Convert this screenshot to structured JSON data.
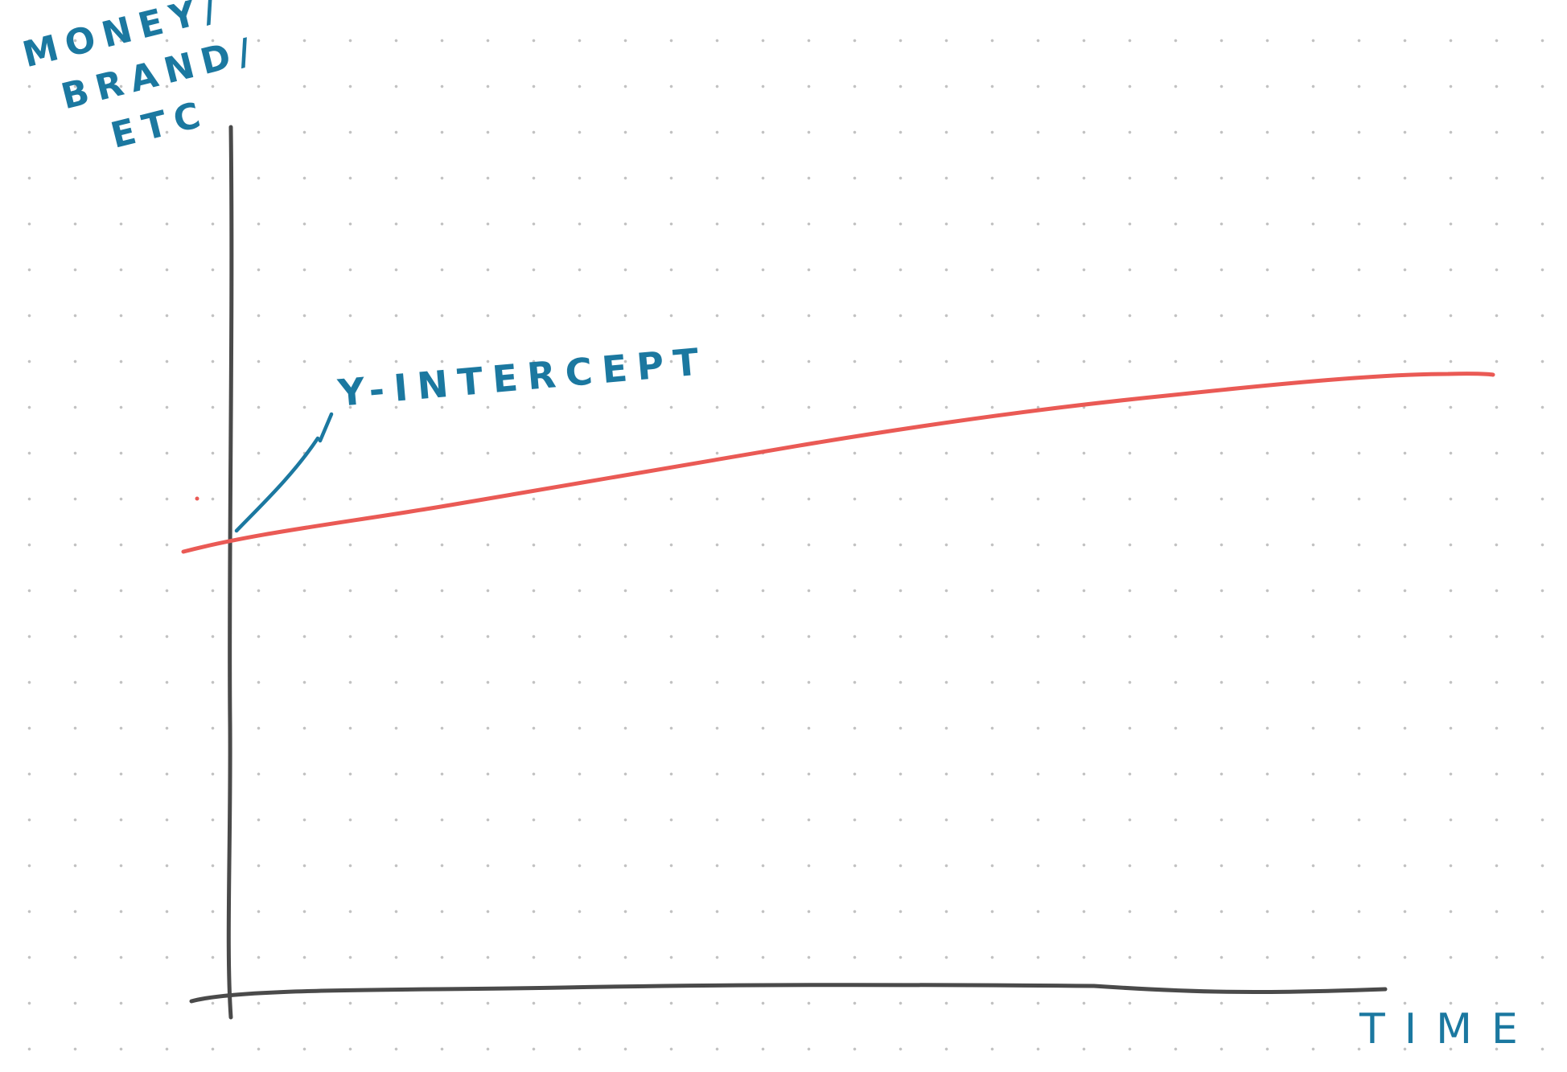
{
  "labels": {
    "y_axis_line1": "MONEY/",
    "y_axis_line2": "BRAND/",
    "y_axis_line3": "ETC",
    "x_axis": "TIME",
    "annotation": "Y-INTERCEPT"
  },
  "colors": {
    "axes": "#4a4a4a",
    "curve": "#ea5a55",
    "ink": "#1b78a0",
    "grid_dots": "#c2c2c2"
  }
}
